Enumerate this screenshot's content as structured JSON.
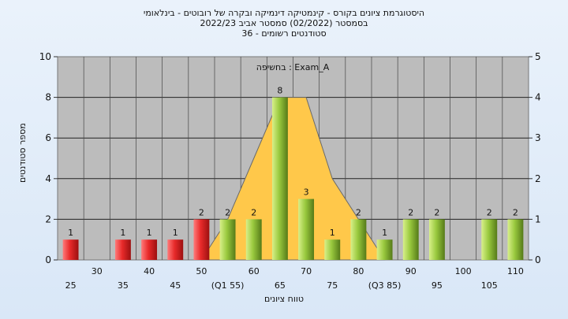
{
  "titles": {
    "line1": "היסטוגרמת ציונים בקורס - קינמטיקה דינמיקה ובקרה של רובוטים - בינלאומי",
    "line2": "בסמסטר  (02/2022)  סמסטר אביב 2022/23",
    "line3": "סטודנטים רשומים - 36"
  },
  "chart_data": {
    "type": "bar",
    "title": "היסטוגרמת ציונים בקורס - קינמטיקה דינמיקה ובקרה של רובוטים - בינלאומי",
    "xlabel": "טווח ציונים",
    "ylabel": "מספר סטודנטים",
    "ylim": [
      0,
      10
    ],
    "y2lim": [
      0,
      5
    ],
    "yticks": [
      0,
      2,
      4,
      6,
      8,
      10
    ],
    "y2ticks": [
      0,
      1,
      2,
      3,
      4,
      5
    ],
    "exam_label": "בחשיפה : Exam_A",
    "grid": true,
    "categories": [
      {
        "label": "25",
        "row": 2
      },
      {
        "label": "30",
        "row": 1
      },
      {
        "label": "35",
        "row": 2
      },
      {
        "label": "40",
        "row": 1
      },
      {
        "label": "45",
        "row": 2
      },
      {
        "label": "50",
        "row": 1
      },
      {
        "label": "(Q1 55)",
        "row": 2
      },
      {
        "label": "60",
        "row": 1
      },
      {
        "label": "65",
        "row": 2
      },
      {
        "label": "70",
        "row": 1
      },
      {
        "label": "75",
        "row": 2
      },
      {
        "label": "80",
        "row": 1
      },
      {
        "label": "(Q3 85)",
        "row": 2
      },
      {
        "label": "90",
        "row": 1
      },
      {
        "label": "95",
        "row": 2
      },
      {
        "label": "100",
        "row": 1
      },
      {
        "label": "105",
        "row": 2
      },
      {
        "label": "110",
        "row": 1
      }
    ],
    "values": [
      1,
      0,
      1,
      1,
      1,
      2,
      2,
      2,
      8,
      3,
      1,
      2,
      1,
      2,
      2,
      0,
      2,
      2
    ],
    "bar_colors": [
      "red",
      "red",
      "red",
      "red",
      "red",
      "red",
      "green",
      "green",
      "green",
      "green",
      "green",
      "green",
      "green",
      "green",
      "green",
      "green",
      "green",
      "green"
    ],
    "distribution_area": {
      "x": [
        "50",
        "(Q1 55)",
        "60",
        "65",
        "70",
        "75",
        "80",
        "(Q3 85)"
      ],
      "values": [
        0,
        2,
        5,
        8,
        8,
        4,
        2,
        0
      ],
      "color": "#ffc84a"
    },
    "colors": {
      "plot_bg": "#bcbcbc",
      "red": "#e03030",
      "green": "#8fbf3a"
    }
  }
}
